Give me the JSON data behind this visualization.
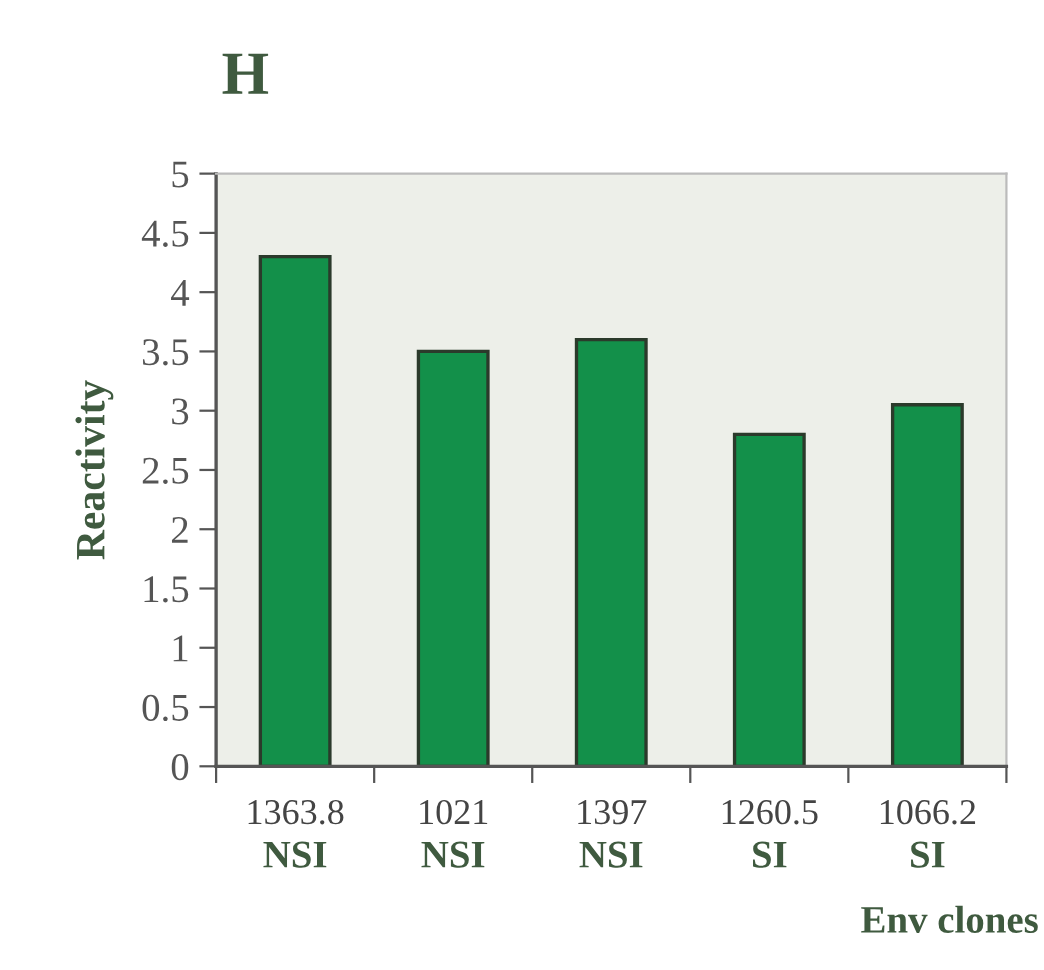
{
  "chart_data": {
    "type": "bar",
    "title": "H",
    "ylabel": "Reactivity",
    "xlabel": "Env clones",
    "categories": [
      "1363.8\nNSI",
      "1021\nNSI",
      "1397\nNSI",
      "1260.5\nSI",
      "1066.2\nSI"
    ],
    "values": [
      4.3,
      3.5,
      3.6,
      2.8,
      3.05
    ],
    "color": "#13904a",
    "ylim": [
      0,
      5
    ],
    "yticks": [
      0,
      0.5,
      1,
      1.5,
      2,
      2.5,
      3,
      3.5,
      4,
      4.5,
      5
    ],
    "grid": false
  }
}
